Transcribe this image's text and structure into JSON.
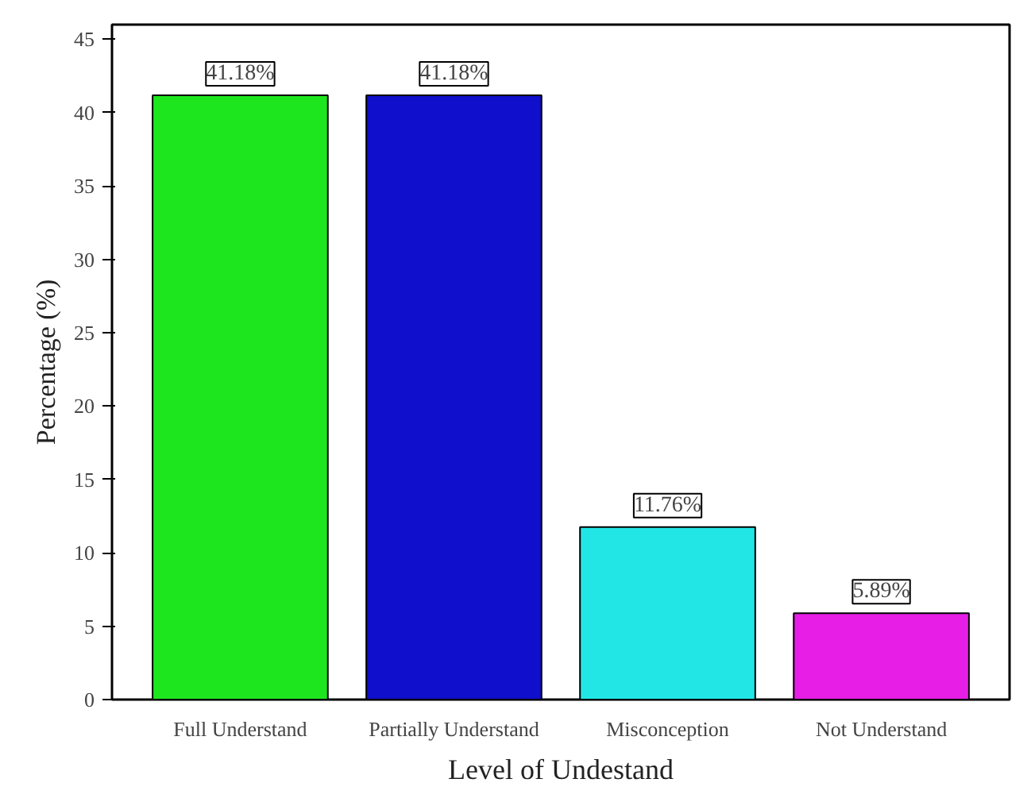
{
  "chart_data": {
    "type": "bar",
    "xlabel": "Level of Undestand",
    "ylabel": "Percentage (%)",
    "categories": [
      "Full Understand",
      "Partially Understand",
      "Misconception",
      "Not Understand"
    ],
    "values": [
      41.18,
      41.18,
      11.76,
      5.89
    ],
    "colors": [
      "#1ee61e",
      "#0f0fcc",
      "#22e6e6",
      "#e61ee6"
    ],
    "value_labels": [
      "41.18%",
      "41.18%",
      "11.76%",
      "5.89%"
    ],
    "ylim": [
      0,
      46
    ],
    "yticks": [
      0,
      5,
      10,
      15,
      20,
      25,
      30,
      35,
      40,
      45
    ],
    "grid": false
  }
}
